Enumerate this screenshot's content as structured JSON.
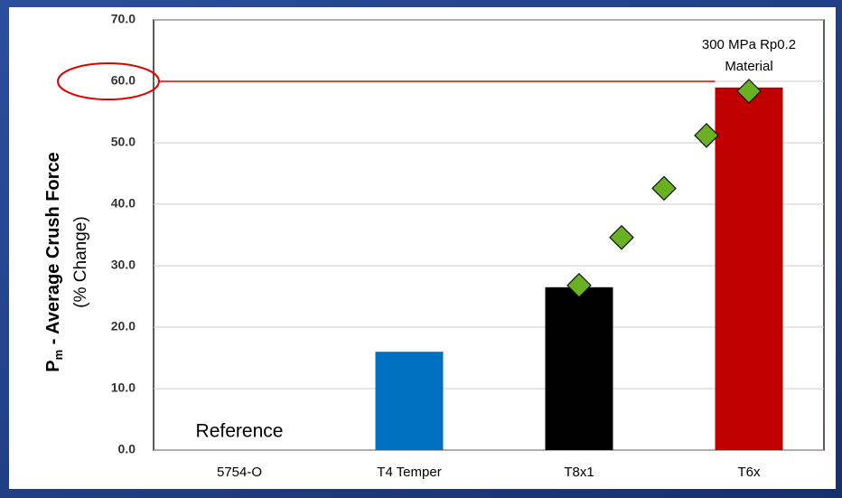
{
  "chart_data": {
    "type": "bar",
    "y_label_main": "P",
    "y_label_sub": "m",
    "y_label_rest": " - Average Crush Force",
    "y_label_unit": "(% Change)",
    "categories": [
      "5754-O",
      "T4 Temper",
      "T8x1",
      "T6x"
    ],
    "values": [
      0,
      16,
      26.5,
      59
    ],
    "colors": [
      "#0070c0",
      "#0070c0",
      "#000000",
      "#c00000"
    ],
    "ylim": [
      0,
      70
    ],
    "yticks": [
      {
        "value": 0,
        "label": "0.0"
      },
      {
        "value": 10,
        "label": "10.0"
      },
      {
        "value": 20,
        "label": "20.0"
      },
      {
        "value": 30,
        "label": "30.0"
      },
      {
        "value": 40,
        "label": "40.0"
      },
      {
        "value": 50,
        "label": "50.0"
      },
      {
        "value": 60,
        "label": "60.0"
      },
      {
        "value": 70,
        "label": "70.0"
      }
    ],
    "grid": true,
    "scatter": {
      "type": "scatter",
      "color": "#6ab023",
      "x": [
        2,
        2.25,
        2.5,
        2.75,
        3
      ],
      "values": [
        26.8,
        34.6,
        42.6,
        51.2,
        58.4
      ]
    },
    "reference_line": {
      "value": 60,
      "color": "#e00000"
    },
    "annotations": [
      "Reference",
      "300 MPa Rp0.2",
      "Material"
    ]
  }
}
